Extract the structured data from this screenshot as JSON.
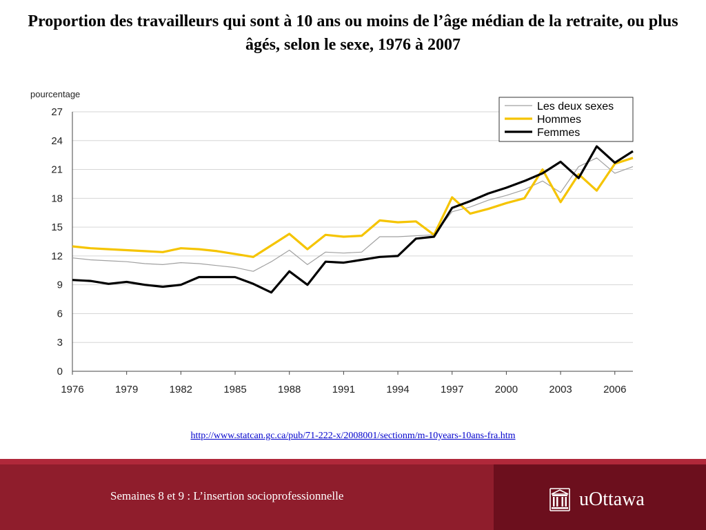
{
  "slide": {
    "title": "Proportion des travailleurs qui sont à 10 ans ou moins de l’âge médian de la retraite, ou plus âgés, selon le sexe, 1976 à 2007",
    "source_url": "http://www.statcan.gc.ca/pub/71-222-x/2008001/sectionm/m-10years-10ans-fra.htm"
  },
  "footer": {
    "course_text": "Semaines 8 et 9 : L’insertion socioprofessionnelle",
    "logo_text": "uOttawa",
    "logo_icon": "university-building-icon",
    "colors": {
      "band": "#8f1d2c",
      "band_light": "#b0283a",
      "logo_panel": "#6c0f1d"
    }
  },
  "chart_data": {
    "type": "line",
    "ylabel": "pourcentage",
    "ylim": [
      0,
      27
    ],
    "yticks": [
      0,
      3,
      6,
      9,
      12,
      15,
      18,
      21,
      24,
      27
    ],
    "xlim": [
      1976,
      2007
    ],
    "xticks": [
      1976,
      1979,
      1982,
      1985,
      1988,
      1991,
      1994,
      1997,
      2000,
      2003,
      2006
    ],
    "grid": true,
    "legend_position": "top-right",
    "x": [
      1976,
      1977,
      1978,
      1979,
      1980,
      1981,
      1982,
      1983,
      1984,
      1985,
      1986,
      1987,
      1988,
      1989,
      1990,
      1991,
      1992,
      1993,
      1994,
      1995,
      1996,
      1997,
      1998,
      1999,
      2000,
      2001,
      2002,
      2003,
      2004,
      2005,
      2006,
      2007
    ],
    "series": [
      {
        "name": "Les deux sexes",
        "color": "#a0a0a0",
        "width": 1.2,
        "values": [
          11.8,
          11.6,
          11.5,
          11.4,
          11.2,
          11.1,
          11.3,
          11.2,
          11.0,
          10.8,
          10.4,
          11.4,
          12.6,
          11.1,
          12.4,
          12.3,
          12.4,
          14.0,
          14.0,
          14.1,
          14.2,
          16.6,
          17.1,
          17.8,
          18.3,
          18.9,
          19.8,
          18.6,
          21.3,
          22.2,
          20.6,
          21.3
        ]
      },
      {
        "name": "Hommes",
        "color": "#f5c400",
        "width": 3.2,
        "values": [
          13.0,
          12.8,
          12.7,
          12.6,
          12.5,
          12.4,
          12.8,
          12.7,
          12.5,
          12.2,
          11.9,
          13.1,
          14.3,
          12.7,
          14.2,
          14.0,
          14.1,
          15.7,
          15.5,
          15.6,
          14.2,
          18.1,
          16.4,
          16.9,
          17.5,
          18.0,
          21.0,
          17.6,
          20.5,
          18.8,
          21.6,
          22.2
        ]
      },
      {
        "name": "Femmes",
        "color": "#000000",
        "width": 3.2,
        "values": [
          9.5,
          9.4,
          9.1,
          9.3,
          9.0,
          8.8,
          9.0,
          9.8,
          9.8,
          9.8,
          9.1,
          8.2,
          10.4,
          9.0,
          11.4,
          11.3,
          11.6,
          11.9,
          12.0,
          13.8,
          14.0,
          17.0,
          17.7,
          18.5,
          19.1,
          19.8,
          20.6,
          21.8,
          20.1,
          23.4,
          21.7,
          22.9
        ]
      }
    ]
  }
}
